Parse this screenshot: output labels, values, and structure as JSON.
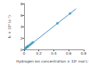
{
  "chart_data": {
    "type": "scatter",
    "x_label": "Hydrogen ion concentration × 10² mol L⁻¹",
    "y_label": "kᵣ × 10⁴ (s⁻¹)",
    "series": [
      {
        "type": "scatter",
        "color": "#4aa3c8",
        "marker": "circle",
        "x": [
          0.02,
          0.03,
          0.04,
          0.05,
          0.06,
          0.08,
          0.1,
          0.12,
          0.45,
          0.62
        ],
        "values": [
          0.3,
          0.4,
          0.5,
          0.6,
          0.7,
          0.9,
          1.1,
          1.3,
          4.6,
          6.3
        ]
      },
      {
        "type": "line",
        "color": "#2f7fb5",
        "line_style": "solid",
        "x": [
          0,
          0.7
        ],
        "values": [
          0,
          7.1
        ]
      }
    ],
    "xlim": [
      0,
      0.8
    ],
    "xticks": [
      0,
      0.2,
      0.4,
      0.6,
      0.8
    ],
    "ylim": [
      0,
      8
    ],
    "yticks": [
      0,
      2,
      4,
      6,
      8
    ],
    "grid": false
  }
}
